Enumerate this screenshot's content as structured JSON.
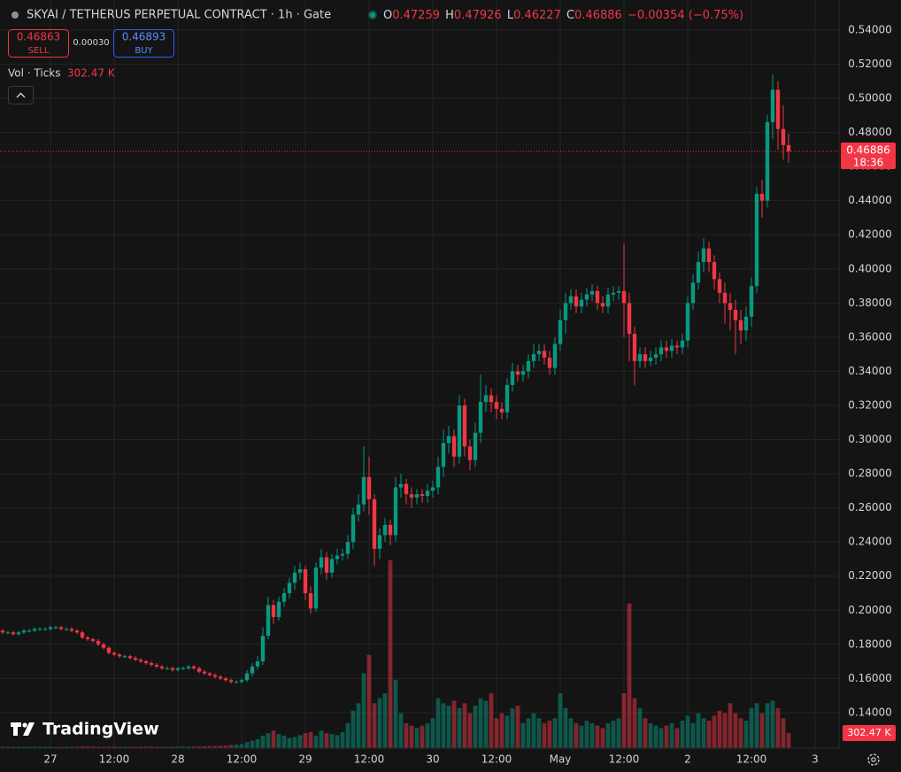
{
  "chart_data": {
    "type": "candlestick",
    "title": "SKYAI / TETHERUS PERPETUAL CONTRACT · 1h · Gate",
    "ohlc_letters": [
      "O",
      "H",
      "L",
      "C"
    ],
    "change_label": "−0.00354 (−0.75%)",
    "order_panel": {
      "sell_price": "0.46863",
      "sell": "SELL",
      "spread": "0.00030",
      "buy_price": "0.46893",
      "buy": "BUY"
    },
    "volume_title": "Vol · Ticks",
    "volume_value_label": "302.47 K",
    "countdown": "18:36",
    "branding": "TradingView",
    "up_color": "#089981",
    "down_color": "#f23645",
    "grid": true,
    "ylim": [
      0.1192,
      0.5576
    ],
    "yticks": [
      {
        "value": 0.14,
        "label": "0.14000"
      },
      {
        "value": 0.16,
        "label": "0.16000"
      },
      {
        "value": 0.18,
        "label": "0.18000"
      },
      {
        "value": 0.2,
        "label": "0.20000"
      },
      {
        "value": 0.22,
        "label": "0.22000"
      },
      {
        "value": 0.24,
        "label": "0.24000"
      },
      {
        "value": 0.26,
        "label": "0.26000"
      },
      {
        "value": 0.28,
        "label": "0.28000"
      },
      {
        "value": 0.3,
        "label": "0.30000"
      },
      {
        "value": 0.32,
        "label": "0.32000"
      },
      {
        "value": 0.34,
        "label": "0.34000"
      },
      {
        "value": 0.36,
        "label": "0.36000"
      },
      {
        "value": 0.38,
        "label": "0.38000"
      },
      {
        "value": 0.4,
        "label": "0.40000"
      },
      {
        "value": 0.42,
        "label": "0.42000"
      },
      {
        "value": 0.44,
        "label": "0.44000"
      },
      {
        "value": 0.46,
        "label": "0.46000"
      },
      {
        "value": 0.48,
        "label": "0.48000"
      },
      {
        "value": 0.5,
        "label": "0.50000"
      },
      {
        "value": 0.52,
        "label": "0.52000"
      },
      {
        "value": 0.54,
        "label": "0.54000"
      }
    ],
    "volume_lim": [
      0,
      15000000
    ],
    "categories": [
      null,
      null,
      null,
      null,
      null,
      null,
      null,
      null,
      null,
      "27",
      null,
      null,
      null,
      null,
      null,
      null,
      null,
      null,
      null,
      null,
      null,
      "12:00",
      null,
      null,
      null,
      null,
      null,
      null,
      null,
      null,
      null,
      null,
      null,
      "28",
      null,
      null,
      null,
      null,
      null,
      null,
      null,
      null,
      null,
      null,
      null,
      "12:00",
      null,
      null,
      null,
      null,
      null,
      null,
      null,
      null,
      null,
      null,
      null,
      "29",
      null,
      null,
      null,
      null,
      null,
      null,
      null,
      null,
      null,
      null,
      null,
      "12:00",
      null,
      null,
      null,
      null,
      null,
      null,
      null,
      null,
      null,
      null,
      null,
      "30",
      null,
      null,
      null,
      null,
      null,
      null,
      null,
      null,
      null,
      null,
      null,
      "12:00",
      null,
      null,
      null,
      null,
      null,
      null,
      null,
      null,
      null,
      null,
      null,
      "May",
      null,
      null,
      null,
      null,
      null,
      null,
      null,
      null,
      null,
      null,
      null,
      "12:00",
      null,
      null,
      null,
      null,
      null,
      null,
      null,
      null,
      null,
      null,
      null,
      "2",
      null,
      null,
      null,
      null,
      null,
      null,
      null,
      null,
      null,
      null,
      null,
      "12:00",
      null,
      null,
      null,
      null,
      null,
      null,
      null,
      null,
      null,
      null,
      null,
      "3",
      null,
      null,
      null,
      null
    ],
    "open": [
      0.188,
      0.187,
      0.187,
      0.186,
      0.187,
      0.188,
      0.188,
      0.189,
      0.189,
      0.189,
      0.19,
      0.19,
      0.189,
      0.189,
      0.188,
      0.187,
      0.184,
      0.183,
      0.182,
      0.18,
      0.178,
      0.175,
      0.174,
      0.173,
      0.173,
      0.172,
      0.171,
      0.17,
      0.169,
      0.168,
      0.167,
      0.166,
      0.166,
      0.165,
      0.166,
      0.166,
      0.167,
      0.166,
      0.164,
      0.163,
      0.162,
      0.161,
      0.16,
      0.159,
      0.158,
      0.158,
      0.159,
      0.163,
      0.167,
      0.17,
      0.185,
      0.203,
      0.196,
      0.205,
      0.21,
      0.216,
      0.222,
      0.224,
      0.21,
      0.201,
      0.225,
      0.231,
      0.222,
      0.23,
      0.232,
      0.233,
      0.24,
      0.256,
      0.262,
      0.278,
      0.265,
      0.236,
      0.244,
      0.25,
      0.244,
      0.272,
      0.274,
      0.268,
      0.266,
      0.268,
      0.267,
      0.27,
      0.272,
      0.284,
      0.298,
      0.302,
      0.29,
      0.32,
      0.296,
      0.288,
      0.304,
      0.322,
      0.326,
      0.322,
      0.318,
      0.316,
      0.332,
      0.34,
      0.338,
      0.34,
      0.346,
      0.35,
      0.352,
      0.348,
      0.342,
      0.356,
      0.37,
      0.38,
      0.384,
      0.378,
      0.382,
      0.385,
      0.387,
      0.38,
      0.378,
      0.385,
      0.386,
      0.387,
      0.38,
      0.362,
      0.346,
      0.35,
      0.346,
      0.348,
      0.35,
      0.354,
      0.352,
      0.355,
      0.354,
      0.358,
      0.38,
      0.392,
      0.404,
      0.412,
      0.404,
      0.394,
      0.386,
      0.38,
      0.376,
      0.37,
      0.364,
      0.372,
      0.39,
      0.444,
      0.44,
      0.486,
      0.505,
      0.482,
      0.47259,
      null,
      null,
      null,
      null,
      null,
      null,
      null,
      null,
      null
    ],
    "high": [
      0.189,
      0.188,
      0.188,
      0.188,
      0.189,
      0.189,
      0.19,
      0.19,
      0.19,
      0.191,
      0.191,
      0.191,
      0.19,
      0.19,
      0.189,
      0.188,
      0.185,
      0.184,
      0.183,
      0.181,
      0.179,
      0.176,
      0.175,
      0.174,
      0.174,
      0.173,
      0.172,
      0.171,
      0.17,
      0.169,
      0.168,
      0.167,
      0.167,
      0.167,
      0.167,
      0.168,
      0.168,
      0.167,
      0.165,
      0.164,
      0.163,
      0.162,
      0.161,
      0.16,
      0.159,
      0.16,
      0.165,
      0.169,
      0.173,
      0.19,
      0.208,
      0.206,
      0.208,
      0.213,
      0.219,
      0.226,
      0.228,
      0.226,
      0.214,
      0.228,
      0.236,
      0.234,
      0.233,
      0.236,
      0.236,
      0.244,
      0.26,
      0.268,
      0.296,
      0.29,
      0.268,
      0.248,
      0.254,
      0.253,
      0.278,
      0.28,
      0.277,
      0.272,
      0.271,
      0.271,
      0.274,
      0.276,
      0.29,
      0.306,
      0.308,
      0.306,
      0.326,
      0.324,
      0.3,
      0.31,
      0.338,
      0.332,
      0.33,
      0.326,
      0.322,
      0.336,
      0.345,
      0.344,
      0.344,
      0.35,
      0.356,
      0.356,
      0.356,
      0.352,
      0.36,
      0.376,
      0.386,
      0.388,
      0.388,
      0.386,
      0.389,
      0.391,
      0.39,
      0.384,
      0.389,
      0.39,
      0.39,
      0.415,
      0.386,
      0.366,
      0.354,
      0.354,
      0.352,
      0.354,
      0.358,
      0.358,
      0.359,
      0.358,
      0.362,
      0.384,
      0.397,
      0.41,
      0.418,
      0.416,
      0.408,
      0.398,
      0.392,
      0.386,
      0.382,
      0.376,
      0.378,
      0.395,
      0.448,
      0.452,
      0.49,
      0.514,
      0.51,
      0.496,
      0.47926,
      null,
      null,
      null,
      null,
      null,
      null,
      null,
      null,
      null
    ],
    "low": [
      0.186,
      0.186,
      0.185,
      0.185,
      0.186,
      0.187,
      0.187,
      0.188,
      0.188,
      0.188,
      0.189,
      0.188,
      0.188,
      0.187,
      0.186,
      0.183,
      0.182,
      0.181,
      0.179,
      0.177,
      0.174,
      0.173,
      0.172,
      0.172,
      0.171,
      0.17,
      0.169,
      0.168,
      0.167,
      0.166,
      0.165,
      0.165,
      0.164,
      0.164,
      0.165,
      0.165,
      0.165,
      0.163,
      0.162,
      0.161,
      0.16,
      0.159,
      0.158,
      0.157,
      0.157,
      0.157,
      0.158,
      0.161,
      0.165,
      0.168,
      0.183,
      0.192,
      0.194,
      0.202,
      0.207,
      0.212,
      0.218,
      0.206,
      0.198,
      0.199,
      0.221,
      0.218,
      0.219,
      0.227,
      0.229,
      0.23,
      0.236,
      0.252,
      0.258,
      0.256,
      0.226,
      0.23,
      0.24,
      0.238,
      0.24,
      0.266,
      0.262,
      0.26,
      0.262,
      0.263,
      0.263,
      0.266,
      0.268,
      0.278,
      0.292,
      0.284,
      0.286,
      0.29,
      0.282,
      0.284,
      0.298,
      0.316,
      0.316,
      0.312,
      0.312,
      0.312,
      0.328,
      0.334,
      0.334,
      0.336,
      0.342,
      0.346,
      0.344,
      0.338,
      0.338,
      0.352,
      0.362,
      0.376,
      0.374,
      0.374,
      0.378,
      0.381,
      0.376,
      0.374,
      0.374,
      0.381,
      0.382,
      0.36,
      0.346,
      0.332,
      0.342,
      0.342,
      0.343,
      0.344,
      0.346,
      0.348,
      0.348,
      0.35,
      0.35,
      0.354,
      0.376,
      0.388,
      0.398,
      0.398,
      0.388,
      0.38,
      0.368,
      0.364,
      0.35,
      0.356,
      0.358,
      0.366,
      0.386,
      0.43,
      0.436,
      0.476,
      0.47,
      0.464,
      0.46227,
      null,
      null,
      null,
      null,
      null,
      null,
      null,
      null,
      null
    ],
    "close": [
      0.187,
      0.187,
      0.186,
      0.187,
      0.188,
      0.188,
      0.189,
      0.189,
      0.189,
      0.19,
      0.19,
      0.189,
      0.189,
      0.188,
      0.187,
      0.184,
      0.183,
      0.182,
      0.18,
      0.178,
      0.175,
      0.174,
      0.173,
      0.173,
      0.172,
      0.171,
      0.17,
      0.169,
      0.168,
      0.167,
      0.166,
      0.166,
      0.165,
      0.166,
      0.166,
      0.167,
      0.166,
      0.164,
      0.163,
      0.162,
      0.161,
      0.16,
      0.159,
      0.158,
      0.158,
      0.159,
      0.163,
      0.167,
      0.17,
      0.185,
      0.203,
      0.196,
      0.205,
      0.21,
      0.216,
      0.222,
      0.224,
      0.21,
      0.201,
      0.225,
      0.231,
      0.222,
      0.23,
      0.232,
      0.233,
      0.24,
      0.256,
      0.262,
      0.278,
      0.265,
      0.236,
      0.244,
      0.25,
      0.244,
      0.272,
      0.274,
      0.268,
      0.266,
      0.268,
      0.267,
      0.27,
      0.272,
      0.284,
      0.298,
      0.302,
      0.29,
      0.32,
      0.296,
      0.288,
      0.304,
      0.322,
      0.326,
      0.322,
      0.318,
      0.316,
      0.332,
      0.34,
      0.338,
      0.34,
      0.346,
      0.35,
      0.352,
      0.348,
      0.342,
      0.356,
      0.37,
      0.38,
      0.384,
      0.378,
      0.382,
      0.385,
      0.387,
      0.38,
      0.378,
      0.385,
      0.386,
      0.387,
      0.38,
      0.362,
      0.346,
      0.35,
      0.346,
      0.348,
      0.35,
      0.354,
      0.352,
      0.355,
      0.354,
      0.358,
      0.38,
      0.392,
      0.404,
      0.412,
      0.404,
      0.394,
      0.386,
      0.38,
      0.376,
      0.37,
      0.364,
      0.372,
      0.39,
      0.444,
      0.44,
      0.486,
      0.505,
      0.482,
      0.47259,
      0.46886,
      null,
      null,
      null,
      null,
      null,
      null,
      null,
      null,
      null
    ],
    "volume": [
      30000,
      25000,
      28000,
      30000,
      22000,
      26000,
      30000,
      28000,
      25000,
      27000,
      24000,
      22000,
      26000,
      28000,
      30000,
      35000,
      32000,
      30000,
      28000,
      27000,
      30000,
      28000,
      26000,
      25000,
      24000,
      26000,
      27000,
      30000,
      28000,
      26000,
      25000,
      24000,
      26000,
      28000,
      30000,
      32000,
      28000,
      35000,
      38000,
      40000,
      42000,
      45000,
      50000,
      60000,
      70000,
      80000,
      120000,
      150000,
      180000,
      250000,
      300000,
      350000,
      280000,
      250000,
      200000,
      220000,
      260000,
      300000,
      320000,
      250000,
      350000,
      300000,
      280000,
      260000,
      320000,
      500000,
      750000,
      900000,
      1500000,
      1870000,
      900000,
      1000000,
      1100000,
      3770000,
      1370000,
      700000,
      500000,
      450000,
      400000,
      450000,
      500000,
      600000,
      1000000,
      900000,
      850000,
      950000,
      800000,
      900000,
      700000,
      850000,
      1000000,
      950000,
      1100000,
      600000,
      700000,
      650000,
      800000,
      850000,
      500000,
      600000,
      700000,
      600000,
      500000,
      550000,
      600000,
      1100000,
      800000,
      600000,
      500000,
      450000,
      550000,
      500000,
      450000,
      400000,
      500000,
      550000,
      600000,
      1100000,
      2900000,
      1000000,
      800000,
      600000,
      500000,
      450000,
      400000,
      450000,
      500000,
      400000,
      550000,
      650000,
      500000,
      700000,
      600000,
      550000,
      650000,
      750000,
      700000,
      900000,
      700000,
      600000,
      550000,
      800000,
      900000,
      700000,
      900000,
      950000,
      800000,
      600000,
      302470,
      null,
      null,
      null,
      null,
      null,
      null,
      null,
      null,
      null
    ]
  }
}
